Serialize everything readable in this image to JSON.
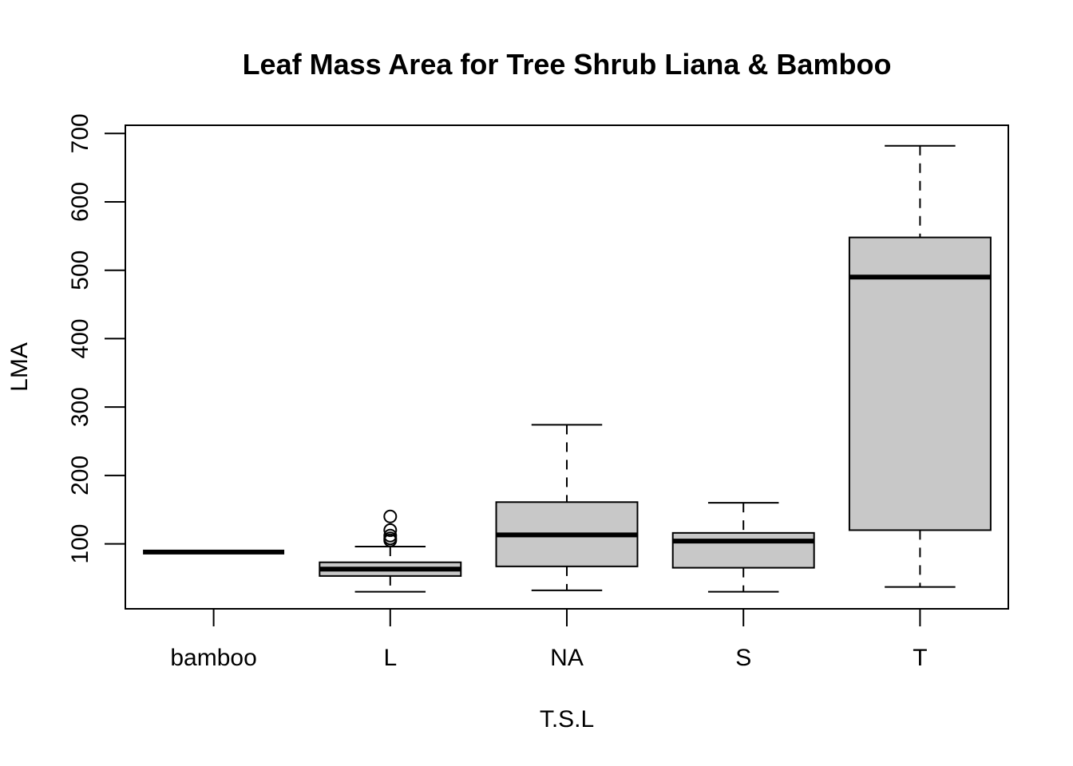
{
  "chart_data": {
    "type": "boxplot",
    "title": "Leaf Mass Area for Tree Shrub Liana & Bamboo",
    "xlabel": "T.S.L",
    "ylabel": "LMA",
    "categories": [
      "bamboo",
      "L",
      "NA",
      "S",
      "T"
    ],
    "yticks": [
      100,
      200,
      300,
      400,
      500,
      600,
      700
    ],
    "ylim": [
      5,
      712
    ],
    "grid": false,
    "box_fill": "#c8c8c8",
    "boxes": [
      {
        "name": "bamboo",
        "whisker_low": 88,
        "q1": 88,
        "median": 88,
        "q3": 88,
        "whisker_high": 88,
        "outliers": []
      },
      {
        "name": "L",
        "whisker_low": 30,
        "q1": 53,
        "median": 63,
        "q3": 73,
        "whisker_high": 96,
        "outliers": [
          105,
          108,
          112,
          120,
          140
        ]
      },
      {
        "name": "NA",
        "whisker_low": 32,
        "q1": 67,
        "median": 113,
        "q3": 161,
        "whisker_high": 274,
        "outliers": []
      },
      {
        "name": "S",
        "whisker_low": 30,
        "q1": 65,
        "median": 104,
        "q3": 116,
        "whisker_high": 160,
        "outliers": []
      },
      {
        "name": "T",
        "whisker_low": 37,
        "q1": 120,
        "median": 490,
        "q3": 548,
        "whisker_high": 682,
        "outliers": []
      }
    ]
  }
}
